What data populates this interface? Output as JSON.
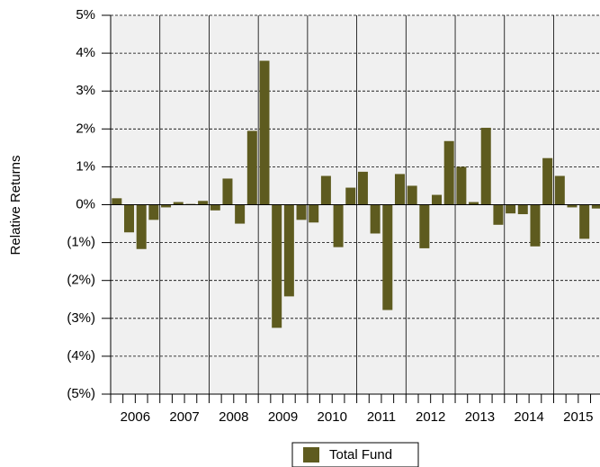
{
  "chart_data": {
    "type": "bar",
    "y_axis_label": "Relative Returns",
    "categories": [
      null,
      null,
      null,
      null,
      null,
      null,
      null,
      null,
      null,
      null,
      null,
      null,
      null,
      null,
      null,
      null,
      null,
      null,
      null,
      null,
      null,
      null,
      null,
      null,
      null,
      null,
      null,
      null,
      null,
      null,
      null,
      null,
      null,
      null,
      null,
      null,
      null,
      null,
      null,
      null
    ],
    "year_labels": [
      "2006",
      "2007",
      "2008",
      "2009",
      "2010",
      "2011",
      "2012",
      "2013",
      "2014",
      "2015"
    ],
    "series": [
      {
        "name": "Total Fund",
        "color": "#5e5b1f",
        "values": [
          0.17,
          -0.73,
          -1.17,
          -0.4,
          -0.07,
          0.07,
          0.02,
          0.1,
          -0.15,
          0.69,
          -0.5,
          1.95,
          3.8,
          -3.25,
          -2.42,
          -0.4,
          -0.47,
          0.76,
          -1.12,
          0.45,
          0.87,
          -0.76,
          -2.78,
          0.81,
          0.5,
          -1.15,
          0.26,
          1.68,
          1.0,
          0.07,
          2.03,
          -0.53,
          -0.23,
          -0.25,
          -1.1,
          1.23,
          0.76,
          -0.07,
          -0.9,
          -0.1
        ]
      }
    ],
    "ylim": [
      -5,
      5
    ],
    "yticks": [
      {
        "value": -5,
        "label": "(5%)"
      },
      {
        "value": -4,
        "label": "(4%)"
      },
      {
        "value": -3,
        "label": "(3%)"
      },
      {
        "value": -2,
        "label": "(2%)"
      },
      {
        "value": -1,
        "label": "(1%)"
      },
      {
        "value": 0,
        "label": "0%"
      },
      {
        "value": 1,
        "label": "1%"
      },
      {
        "value": 2,
        "label": "2%"
      },
      {
        "value": 3,
        "label": "3%"
      },
      {
        "value": 4,
        "label": "4%"
      },
      {
        "value": 5,
        "label": "5%"
      }
    ],
    "grid": true,
    "negative_tick_color": "#e2211c",
    "legend": "bottom"
  }
}
